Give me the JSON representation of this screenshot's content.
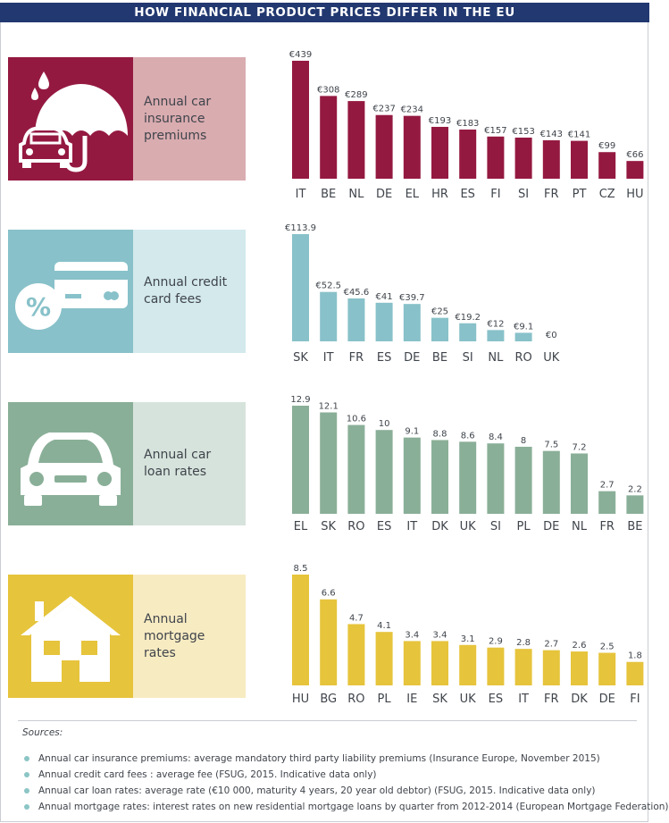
{
  "title": "HOW FINANCIAL PRODUCT PRICES DIFFER IN THE EU",
  "colors": {
    "banner": "#223870",
    "insurance": "#941941",
    "insurance_light": "#d9acb0",
    "credit": "#88c1c9",
    "credit_light": "#d3e9ec",
    "loan": "#8aaf98",
    "loan_light": "#d6e3dc",
    "mortgage": "#e6c43c",
    "mortgage_light": "#f7ebc2"
  },
  "panels": [
    {
      "label": "Annual car\ninsurance\npremiums",
      "icon": "umbrella-car-icon"
    },
    {
      "label": "Annual credit\ncard fees",
      "icon": "credit-card-percent-icon"
    },
    {
      "label": "Annual car\nloan rates",
      "icon": "car-icon"
    },
    {
      "label": "Annual\nmortgage\nrates",
      "icon": "house-icon"
    }
  ],
  "chart_data": [
    {
      "type": "bar",
      "title": "Annual car insurance premiums",
      "categories": [
        "IT",
        "BE",
        "NL",
        "DE",
        "EL",
        "HR",
        "ES",
        "FI",
        "SI",
        "FR",
        "PT",
        "CZ",
        "HU"
      ],
      "values": [
        439,
        308,
        289,
        237,
        234,
        193,
        183,
        157,
        153,
        143,
        141,
        99,
        66
      ],
      "data_labels": [
        "€439",
        "€308",
        "€289",
        "€237",
        "€234",
        "€193",
        "€183",
        "€157",
        "€153",
        "€143",
        "€141",
        "€99",
        "€66"
      ],
      "ylim": [
        0,
        439
      ],
      "grid": false
    },
    {
      "type": "bar",
      "title": "Annual credit card fees",
      "categories": [
        "SK",
        "IT",
        "FR",
        "ES",
        "DE",
        "BE",
        "SI",
        "NL",
        "RO",
        "UK"
      ],
      "values": [
        113.9,
        52.5,
        45.6,
        41,
        39.7,
        25,
        19.2,
        12,
        9.1,
        0
      ],
      "data_labels": [
        "€113.9",
        "€52.5",
        "€45.6",
        "€41",
        "€39.7",
        "€25",
        "€19.2",
        "€12",
        "€9.1",
        "€0"
      ],
      "ylim": [
        0,
        113.9
      ],
      "grid": false
    },
    {
      "type": "bar",
      "title": "Annual car loan rates",
      "categories": [
        "EL",
        "SK",
        "RO",
        "ES",
        "IT",
        "DK",
        "UK",
        "SI",
        "PL",
        "DE",
        "NL",
        "FR",
        "BE"
      ],
      "values": [
        12.9,
        12.1,
        10.6,
        10,
        9.1,
        8.8,
        8.6,
        8.4,
        8,
        7.5,
        7.2,
        2.7,
        2.2
      ],
      "data_labels": [
        "12.9",
        "12.1",
        "10.6",
        "10",
        "9.1",
        "8.8",
        "8.6",
        "8.4",
        "8",
        "7.5",
        "7.2",
        "2.7",
        "2.2"
      ],
      "ylim": [
        0,
        12.9
      ],
      "grid": false
    },
    {
      "type": "bar",
      "title": "Annual mortgage rates",
      "categories": [
        "HU",
        "BG",
        "RO",
        "PL",
        "IE",
        "SK",
        "UK",
        "ES",
        "IT",
        "FR",
        "DK",
        "DE",
        "FI"
      ],
      "values": [
        8.5,
        6.6,
        4.7,
        4.1,
        3.4,
        3.4,
        3.1,
        2.9,
        2.8,
        2.7,
        2.6,
        2.5,
        1.8
      ],
      "data_labels": [
        "8.5",
        "6.6",
        "4.7",
        "4.1",
        "3.4",
        "3.4",
        "3.1",
        "2.9",
        "2.8",
        "2.7",
        "2.6",
        "2.5",
        "1.8"
      ],
      "ylim": [
        0,
        8.5
      ],
      "grid": false
    }
  ],
  "sources": {
    "title": "Sources:",
    "items": [
      "Annual car insurance premiums: average mandatory third party liability premiums (Insurance Europe, November 2015)",
      "Annual credit card fees : average fee (FSUG, 2015. Indicative data only)",
      "Annual car loan rates: average rate (€10 000, maturity 4 years, 20 year old debtor)  (FSUG, 2015. Indicative data only)",
      "Annual mortgage rates:  interest rates on new residential mortgage loans by quarter from 2012-2014 (European Mortgage Federation)"
    ]
  }
}
